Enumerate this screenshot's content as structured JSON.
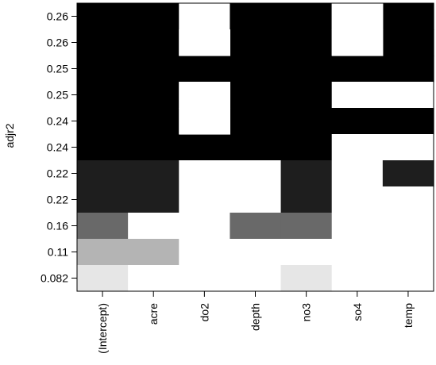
{
  "chart_data": {
    "type": "heatmap",
    "ylabel": "adjr2",
    "xlabel": "",
    "columns": [
      "(Intercept)",
      "acre",
      "do2",
      "depth",
      "no3",
      "so4",
      "temp"
    ],
    "rows": [
      {
        "label": "0.26",
        "fill": "#000000",
        "included": [
          "(Intercept)",
          "acre",
          "depth",
          "no3",
          "temp"
        ]
      },
      {
        "label": "0.26",
        "fill": "#000000",
        "included": [
          "(Intercept)",
          "acre",
          "depth",
          "no3",
          "temp"
        ]
      },
      {
        "label": "0.25",
        "fill": "#000000",
        "included": [
          "(Intercept)",
          "acre",
          "do2",
          "depth",
          "no3",
          "so4",
          "temp"
        ]
      },
      {
        "label": "0.25",
        "fill": "#000000",
        "included": [
          "(Intercept)",
          "acre",
          "depth",
          "no3"
        ]
      },
      {
        "label": "0.24",
        "fill": "#000000",
        "included": [
          "(Intercept)",
          "acre",
          "depth",
          "no3",
          "so4",
          "temp"
        ]
      },
      {
        "label": "0.24",
        "fill": "#000000",
        "included": [
          "(Intercept)",
          "acre",
          "do2",
          "depth",
          "no3"
        ]
      },
      {
        "label": "0.22",
        "fill": "#1e1e1e",
        "included": [
          "(Intercept)",
          "acre",
          "no3",
          "temp"
        ]
      },
      {
        "label": "0.22",
        "fill": "#1e1e1e",
        "included": [
          "(Intercept)",
          "acre",
          "no3"
        ]
      },
      {
        "label": "0.16",
        "fill": "#696969",
        "included": [
          "(Intercept)",
          "depth",
          "no3"
        ]
      },
      {
        "label": "0.11",
        "fill": "#b4b4b4",
        "included": [
          "(Intercept)",
          "acre"
        ]
      },
      {
        "label": "0.082",
        "fill": "#e6e6e6",
        "included": [
          "(Intercept)",
          "no3"
        ]
      }
    ],
    "stacked_cells": [
      {
        "column": "do2",
        "rows": [
          1,
          3,
          4
        ],
        "fill": "#ffffff"
      },
      {
        "column": "so4",
        "rows": [
          0,
          1
        ],
        "fill": "#ffffff"
      }
    ],
    "excluded_fill": "#ffffff"
  }
}
